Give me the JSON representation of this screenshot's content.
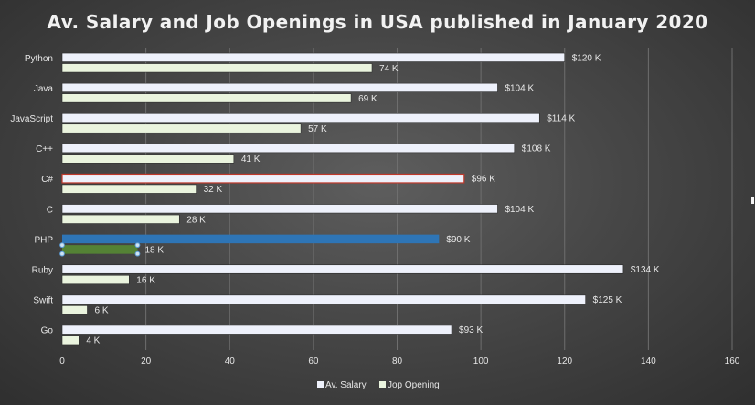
{
  "chart_data": {
    "type": "bar",
    "orientation": "horizontal",
    "title": "Av. Salary and Job Openings in USA published in January 2020",
    "categories": [
      "Python",
      "Java",
      "JavaScript",
      "C++",
      "C#",
      "C",
      "PHP",
      "Ruby",
      "Swift",
      "Go"
    ],
    "series": [
      {
        "name": "Av. Salary",
        "values": [
          120,
          104,
          114,
          108,
          96,
          104,
          90,
          134,
          125,
          93
        ],
        "labels": [
          "$120 K",
          "$104 K",
          "$114 K",
          "$108 K",
          "$96 K",
          "$104 K",
          "$90 K",
          "$134 K",
          "$125 K",
          "$93 K"
        ],
        "color": "#eef1fb",
        "highlight_color": "#2e75b6",
        "highlight_index": 6
      },
      {
        "name": "Jop Opening",
        "values": [
          74,
          69,
          57,
          41,
          32,
          28,
          18,
          16,
          6,
          4
        ],
        "labels": [
          "74 K",
          "69 K",
          "57 K",
          "41 K",
          "32 K",
          "28 K",
          "18 K",
          "16 K",
          "6 K",
          "4 K"
        ],
        "color": "#eaf4de",
        "highlight_color": "#548235",
        "highlight_index": 6
      }
    ],
    "outlined_bar": {
      "series": 0,
      "index": 4,
      "color": "#c0392b"
    },
    "xlim": [
      0,
      160
    ],
    "xticks": [
      0,
      20,
      40,
      60,
      80,
      100,
      120,
      140,
      160
    ],
    "xlabel": "",
    "ylabel": "",
    "grid": true,
    "legend_position": "bottom"
  }
}
